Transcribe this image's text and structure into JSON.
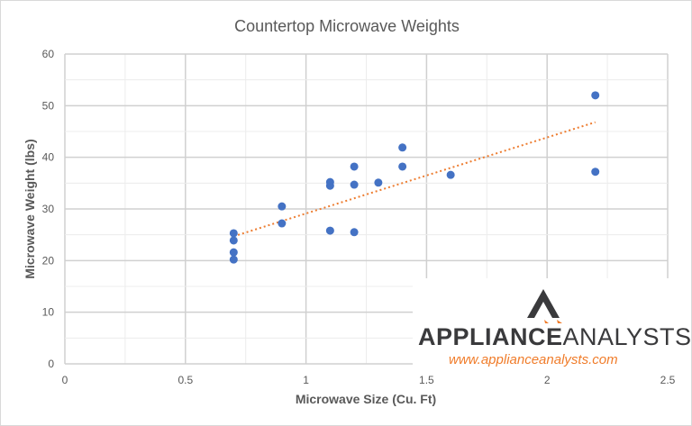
{
  "chart_data": {
    "type": "scatter",
    "title": "Countertop Microwave Weights",
    "xlabel": "Microwave Size (Cu. Ft)",
    "ylabel": "Microwave Weight (lbs)",
    "xlim": [
      0,
      2.5
    ],
    "ylim": [
      0,
      60
    ],
    "xticks": [
      "0",
      "0.5",
      "1",
      "1.5",
      "2",
      "2.5"
    ],
    "yticks": [
      "0",
      "10",
      "20",
      "30",
      "40",
      "50",
      "60"
    ],
    "grid": true,
    "legend": "none",
    "series": [
      {
        "color": "#4472c4",
        "points": [
          [
            0.7,
            25.3
          ],
          [
            0.7,
            23.9
          ],
          [
            0.7,
            21.6
          ],
          [
            0.7,
            20.2
          ],
          [
            0.9,
            30.5
          ],
          [
            0.9,
            27.2
          ],
          [
            1.1,
            35.2
          ],
          [
            1.1,
            34.5
          ],
          [
            1.1,
            25.8
          ],
          [
            1.2,
            38.2
          ],
          [
            1.2,
            34.7
          ],
          [
            1.2,
            25.5
          ],
          [
            1.3,
            35.1
          ],
          [
            1.4,
            41.9
          ],
          [
            1.4,
            38.2
          ],
          [
            1.6,
            36.6
          ],
          [
            2.2,
            52.0
          ],
          [
            2.2,
            37.2
          ]
        ]
      }
    ],
    "trendline": {
      "type": "linear",
      "style": "dotted",
      "color": "#ed7d31",
      "from": [
        0.7,
        24.7
      ],
      "to": [
        2.2,
        46.8
      ]
    }
  },
  "watermark": {
    "brand_bold": "APPLIANCE",
    "brand_light": "ANALYSTS",
    "url": "www.applianceanalysts.com",
    "accent": "#f07c2a"
  }
}
